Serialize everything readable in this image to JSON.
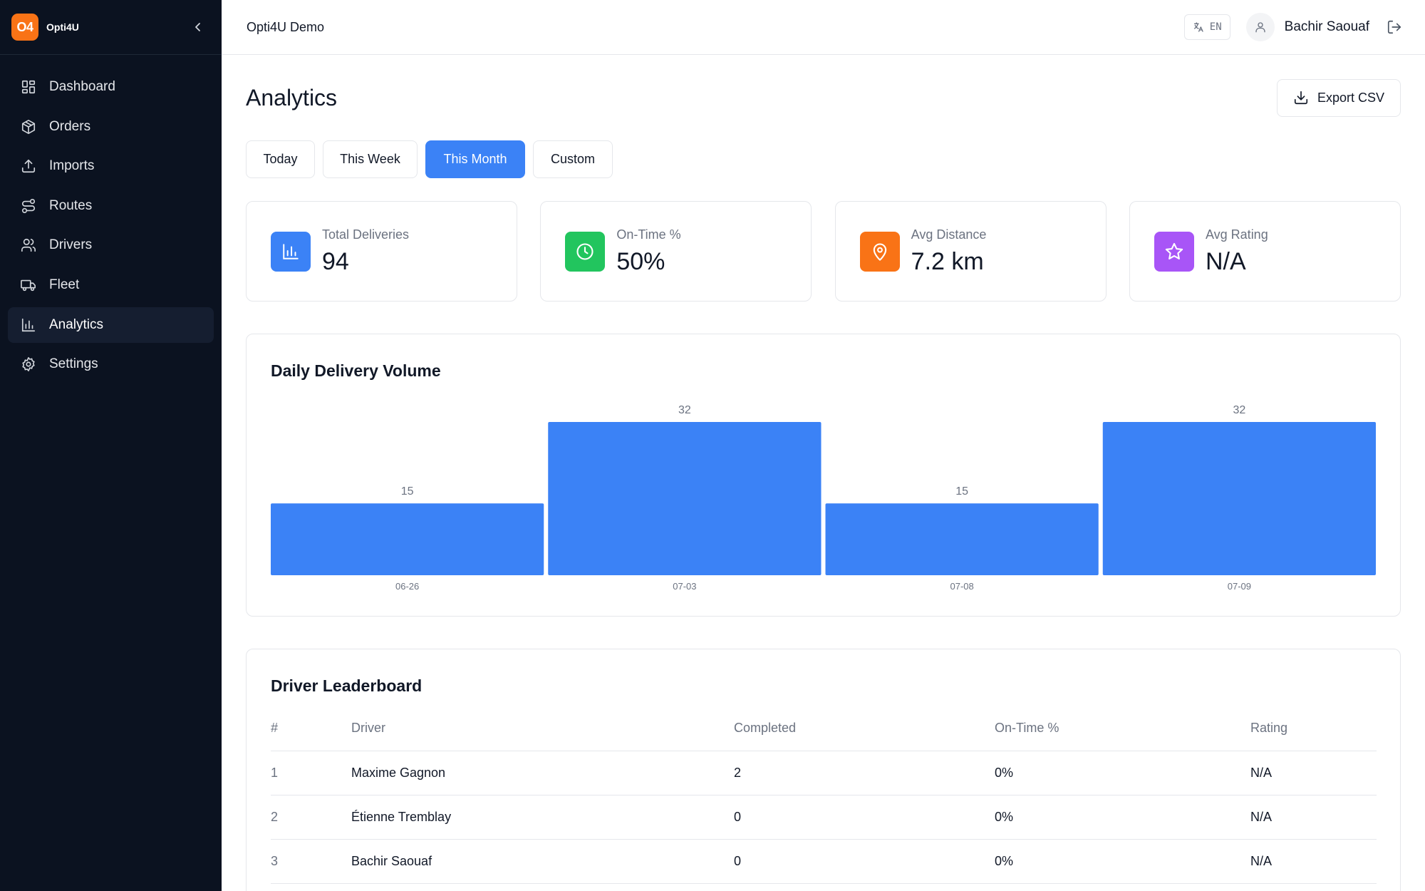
{
  "app": {
    "logo_text": "O4",
    "brand": "Opti4U",
    "org_name": "Opti4U Demo"
  },
  "sidebar": {
    "items": [
      {
        "label": "Dashboard",
        "icon": "dashboard-icon",
        "active": false
      },
      {
        "label": "Orders",
        "icon": "package-icon",
        "active": false
      },
      {
        "label": "Imports",
        "icon": "upload-icon",
        "active": false
      },
      {
        "label": "Routes",
        "icon": "route-icon",
        "active": false
      },
      {
        "label": "Drivers",
        "icon": "users-icon",
        "active": false
      },
      {
        "label": "Fleet",
        "icon": "truck-icon",
        "active": false
      },
      {
        "label": "Analytics",
        "icon": "bar-chart-icon",
        "active": true
      },
      {
        "label": "Settings",
        "icon": "gear-icon",
        "active": false
      }
    ]
  },
  "header": {
    "language": "EN",
    "user_name": "Bachir Saouaf"
  },
  "page": {
    "title": "Analytics",
    "export_label": "Export CSV"
  },
  "filters": {
    "tabs": [
      {
        "label": "Today",
        "active": false
      },
      {
        "label": "This Week",
        "active": false
      },
      {
        "label": "This Month",
        "active": true
      },
      {
        "label": "Custom",
        "active": false
      }
    ]
  },
  "kpis": [
    {
      "label": "Total Deliveries",
      "value": "94",
      "icon": "bar-chart-icon",
      "color": "#3b82f6"
    },
    {
      "label": "On-Time %",
      "value": "50%",
      "icon": "clock-icon",
      "color": "#22c55e"
    },
    {
      "label": "Avg Distance",
      "value": "7.2 km",
      "icon": "map-pin-icon",
      "color": "#f97316"
    },
    {
      "label": "Avg Rating",
      "value": "N/A",
      "icon": "star-icon",
      "color": "#a855f7"
    }
  ],
  "chart_data": {
    "type": "bar",
    "title": "Daily Delivery Volume",
    "categories": [
      "06-26",
      "07-03",
      "07-08",
      "07-09"
    ],
    "values": [
      15,
      32,
      15,
      32
    ],
    "color": "#3b82f6",
    "ylim": [
      0,
      32
    ],
    "grid": false,
    "legend": "none"
  },
  "leaderboard": {
    "title": "Driver Leaderboard",
    "columns": [
      "#",
      "Driver",
      "Completed",
      "On-Time %",
      "Rating"
    ],
    "rows": [
      [
        "1",
        "Maxime Gagnon",
        "2",
        "0%",
        "N/A"
      ],
      [
        "2",
        "Étienne Tremblay",
        "0",
        "0%",
        "N/A"
      ],
      [
        "3",
        "Bachir Saouaf",
        "0",
        "0%",
        "N/A"
      ]
    ]
  }
}
